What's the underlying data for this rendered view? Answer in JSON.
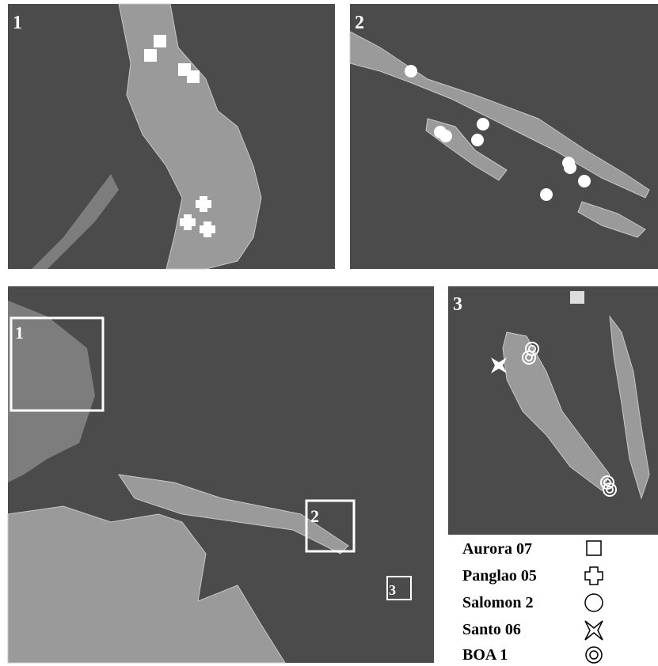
{
  "panels": [
    {
      "label": "1"
    },
    {
      "label": "2"
    },
    {
      "label": "3"
    }
  ],
  "overview": {
    "boxes": [
      {
        "label": "1"
      },
      {
        "label": "2"
      },
      {
        "label": "3"
      }
    ]
  },
  "legend": [
    {
      "label": "Aurora 07"
    },
    {
      "label": "Panglao 05"
    },
    {
      "label": "Salomon 2"
    },
    {
      "label": "Santo 06"
    },
    {
      "label": "BOA 1"
    }
  ]
}
